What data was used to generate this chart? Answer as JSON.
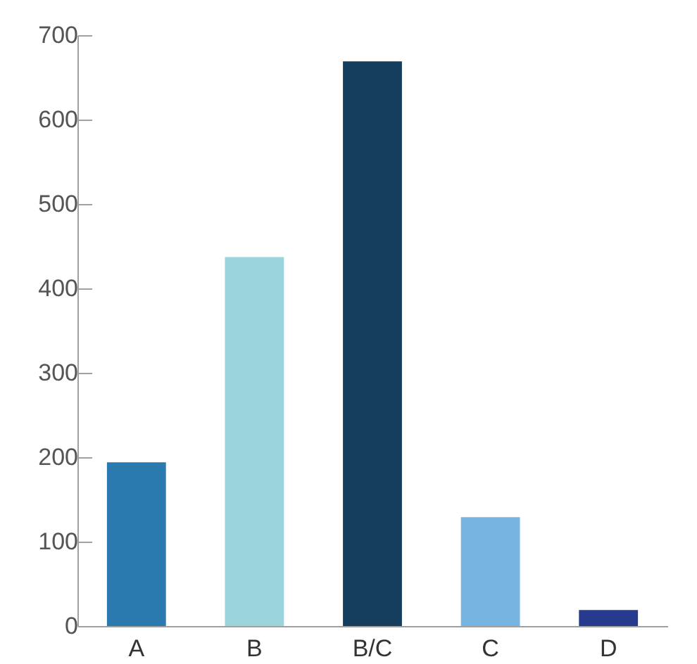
{
  "chart_data": {
    "type": "bar",
    "categories": [
      "A",
      "B",
      "B/C",
      "C",
      "D"
    ],
    "values": [
      194,
      437,
      669,
      129,
      19
    ],
    "colors": [
      "#2a7ab0",
      "#9bd4dc",
      "#153d5e",
      "#76b4e2",
      "#263a8e"
    ],
    "ylim": [
      0,
      700
    ],
    "yticks": [
      0,
      100,
      200,
      300,
      400,
      500,
      600,
      700
    ]
  }
}
